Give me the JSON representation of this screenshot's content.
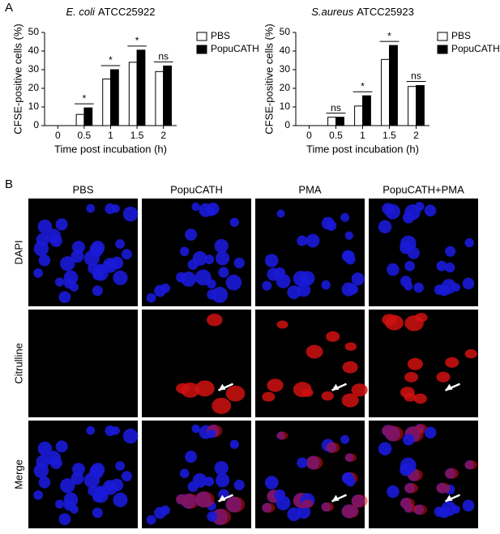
{
  "panel_labels": [
    "A",
    "B"
  ],
  "chart_data": [
    {
      "type": "bar",
      "title_parts": [
        "E. coli",
        "ATCC25922"
      ],
      "x_label": "Time post incubation (h)",
      "y_label": "CFSE-positive cells (%)",
      "categories": [
        "0",
        "0.5",
        "1",
        "1.5",
        "2"
      ],
      "series": [
        {
          "name": "PBS",
          "color": "#ffffff",
          "values": [
            0,
            6,
            25,
            34,
            29
          ]
        },
        {
          "name": "PopuCATH",
          "color": "#000000",
          "values": [
            0,
            9.5,
            30,
            40.5,
            32
          ]
        }
      ],
      "annotations": [
        null,
        "*",
        "*",
        "*",
        "ns"
      ],
      "ylim": [
        0,
        50
      ],
      "yticks": [
        0,
        10,
        20,
        30,
        40,
        50
      ]
    },
    {
      "type": "bar",
      "title_parts": [
        "S.aureus",
        "ATCC25923"
      ],
      "x_label": "Time post incubation (h)",
      "y_label": "CFSE-positive cells (%)",
      "categories": [
        "0",
        "0.5",
        "1",
        "1.5",
        "2"
      ],
      "series": [
        {
          "name": "PBS",
          "color": "#ffffff",
          "values": [
            0,
            4.5,
            10.5,
            35.5,
            21
          ]
        },
        {
          "name": "PopuCATH",
          "color": "#000000",
          "values": [
            0,
            4.5,
            16,
            43,
            21.5
          ]
        }
      ],
      "annotations": [
        null,
        "ns",
        "*",
        "*",
        "ns"
      ],
      "ylim": [
        0,
        50
      ],
      "yticks": [
        0,
        10,
        20,
        30,
        40,
        50
      ]
    }
  ],
  "microscopy": {
    "columns": [
      "PBS",
      "PopuCATH",
      "PMA",
      "PopuCATH+PMA"
    ],
    "rows": [
      "DAPI",
      "Citrulline",
      "Merge"
    ]
  }
}
